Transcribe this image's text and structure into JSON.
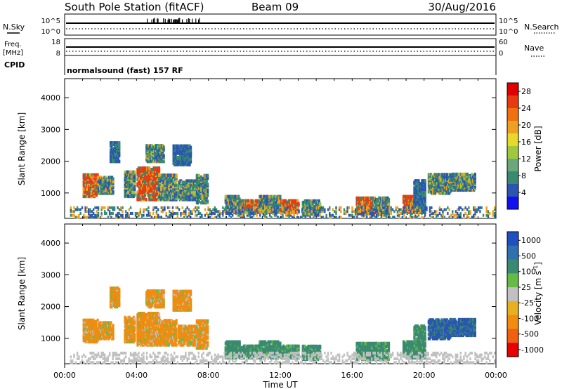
{
  "header": {
    "station": "South Pole Station (fitACF)",
    "beam": "Beam 09",
    "date": "30/Aug/2016"
  },
  "info_panels": {
    "nsky_label": "N.Sky",
    "nsearch_label": "N.Search",
    "left_top_tick": "10^5",
    "left_bottom_tick": "10^0",
    "right_top_tick": "10^5",
    "right_bottom_tick": "10^0",
    "freq_label": "Freq.",
    "freq_unit": "[MHz]",
    "freq_top": "18",
    "freq_bottom": "8",
    "nave_label": "Nave",
    "nave_top": "60",
    "nave_bottom": "0",
    "cpid_label": "CPID",
    "cpid_text": "normalsound (fast) 157 RF"
  },
  "chart_data": [
    {
      "type": "heatmap",
      "name": "power",
      "xlabel": "Time UT",
      "ylabel": "Slant Range [km]",
      "ylim": [
        200,
        4600
      ],
      "yticks": [
        "1000",
        "2000",
        "3000",
        "4000"
      ],
      "colorbar_label": "Power [dB]",
      "colorbar_ticks": [
        "4",
        "8",
        "12",
        "16",
        "20",
        "24",
        "28"
      ],
      "colorbar_colors": [
        "#1010f0",
        "#2a56b0",
        "#3a8a72",
        "#6aa87c",
        "#a0c83c",
        "#e8d82a",
        "#f0a020",
        "#f07010",
        "#e83a10",
        "#e00000"
      ],
      "colors": {
        "low": "#2a56b0",
        "mid": "#3a8a72",
        "high": "#e83a10",
        "hot": "#f0a020"
      }
    },
    {
      "type": "heatmap",
      "name": "velocity",
      "xlabel": "Time UT",
      "ylabel": "Slant Range [km]",
      "ylim": [
        200,
        4600
      ],
      "yticks": [
        "1000",
        "2000",
        "3000",
        "4000"
      ],
      "colorbar_label": "Velocity [m s",
      "colorbar_label_sup": "-1",
      "colorbar_label_end": "]",
      "colorbar_ticks": [
        "1000",
        "500",
        "100",
        "25",
        "-25",
        "-100",
        "-500",
        "-1000"
      ],
      "colorbar_colors": [
        "#2050c0",
        "#3070b0",
        "#3a8a72",
        "#66bb44",
        "#c0c0c0",
        "#e8b020",
        "#f08c10",
        "#f06010",
        "#e80000"
      ],
      "colors": {
        "negative": "#f08c10",
        "positive": "#3a8a72",
        "strong_positive": "#2a56b0",
        "neutral": "#c0c0c0"
      }
    }
  ],
  "time_axis": {
    "ticks": [
      "00:00",
      "04:00",
      "08:00",
      "12:00",
      "16:00",
      "20:00",
      "00:00"
    ],
    "label": "Time UT"
  }
}
